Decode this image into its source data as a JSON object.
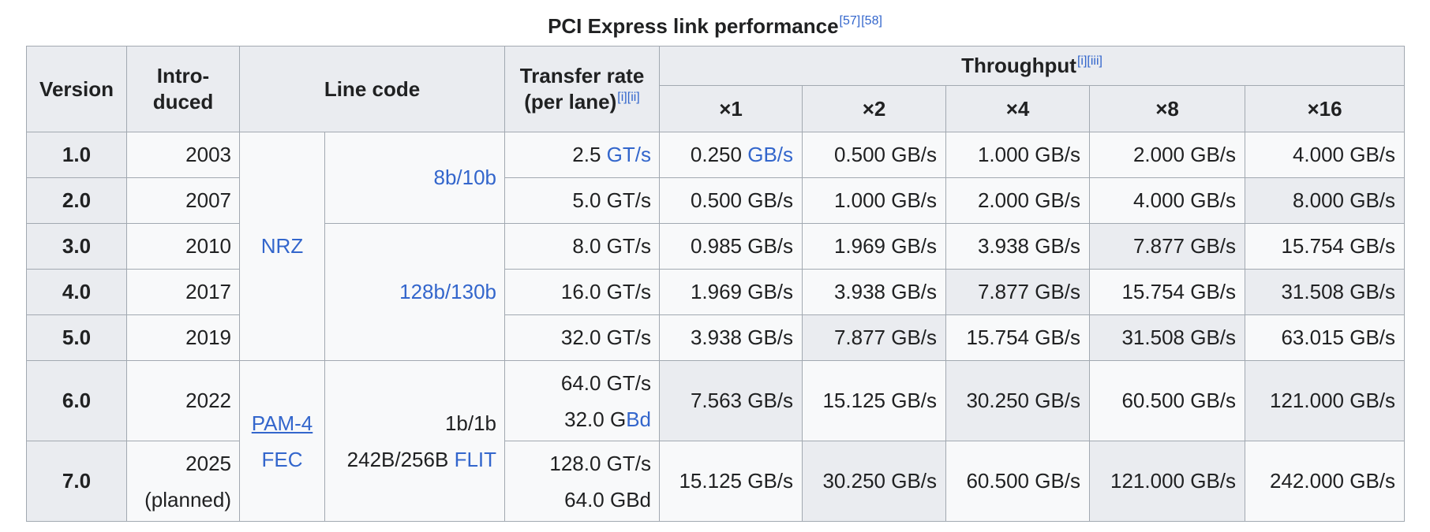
{
  "caption": {
    "title": "PCI Express link performance",
    "ref1": "[57]",
    "ref2": "[58]"
  },
  "headers": {
    "version": "Version",
    "introduced_1": "Intro-",
    "introduced_2": "duced",
    "line_code": "Line code",
    "transfer_1": "Transfer rate",
    "transfer_2": "(per lane)",
    "transfer_notes": "[i][ii]",
    "throughput": "Throughput",
    "throughput_notes": "[i][iii]",
    "lanes": [
      "×1",
      "×2",
      "×4",
      "×8",
      "×16"
    ]
  },
  "line_codes": {
    "nrz": "NRZ",
    "c8b10b": "8b/10b",
    "c128b130b": "128b/130b",
    "pam4": "PAM-4",
    "fec": "FEC",
    "c1b1b": "1b/1b",
    "c242b": "242B/256B",
    "flit": "FLIT"
  },
  "rows": [
    {
      "version": "1.0",
      "year": "2003",
      "rate_num": "2.5",
      "rate_unit": "GT/s",
      "t": [
        "0.250",
        "0.500 GB/s",
        "1.000 GB/s",
        "2.000 GB/s",
        "4.000 GB/s"
      ],
      "t1_unit": "GB/s"
    },
    {
      "version": "2.0",
      "year": "2007",
      "rate": "5.0 GT/s",
      "t": [
        "0.500 GB/s",
        "1.000 GB/s",
        "2.000 GB/s",
        "4.000 GB/s",
        "8.000 GB/s"
      ]
    },
    {
      "version": "3.0",
      "year": "2010",
      "rate": "8.0 GT/s",
      "t": [
        "0.985 GB/s",
        "1.969 GB/s",
        "3.938 GB/s",
        "7.877 GB/s",
        "15.754 GB/s"
      ]
    },
    {
      "version": "4.0",
      "year": "2017",
      "rate": "16.0 GT/s",
      "t": [
        "1.969 GB/s",
        "3.938 GB/s",
        "7.877 GB/s",
        "15.754 GB/s",
        "31.508 GB/s"
      ]
    },
    {
      "version": "5.0",
      "year": "2019",
      "rate": "32.0 GT/s",
      "t": [
        "3.938 GB/s",
        "7.877 GB/s",
        "15.754 GB/s",
        "31.508 GB/s",
        "63.015 GB/s"
      ]
    },
    {
      "version": "6.0",
      "year": "2022",
      "rate_1": "64.0 GT/s",
      "rate_2a": "32.0 G",
      "rate_2b": "Bd",
      "t": [
        "7.563 GB/s",
        "15.125 GB/s",
        "30.250 GB/s",
        "60.500 GB/s",
        "121.000 GB/s"
      ]
    },
    {
      "version": "7.0",
      "year": "2025",
      "year_note": "(planned)",
      "rate_1": "128.0 GT/s",
      "rate_2": "64.0 GBd",
      "t": [
        "15.125 GB/s",
        "30.250 GB/s",
        "60.500 GB/s",
        "121.000 GB/s",
        "242.000 GB/s"
      ]
    }
  ],
  "highlight_color": "#eaecf0",
  "link_color": "#3366cc"
}
